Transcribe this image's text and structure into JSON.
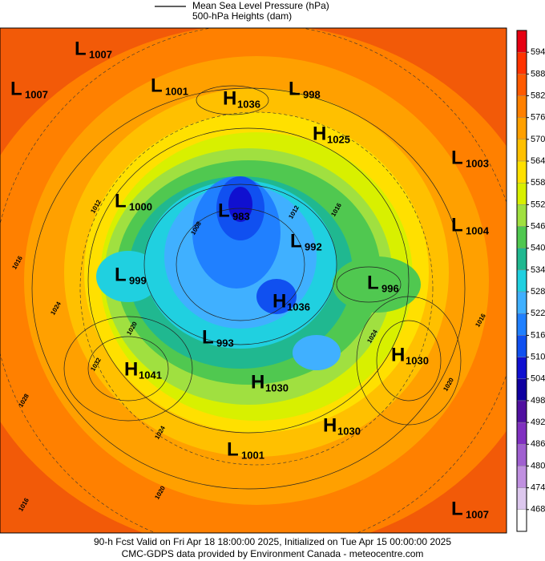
{
  "header": {
    "legend_line": "Mean Sea Level Pressure (hPa)",
    "legend_fill": "500-hPa Heights (dam)"
  },
  "colorbar": {
    "ticks": [
      594,
      588,
      582,
      576,
      570,
      564,
      558,
      552,
      546,
      540,
      534,
      528,
      522,
      516,
      510,
      504,
      498,
      492,
      486,
      480,
      474,
      468
    ],
    "colors": [
      "#e60012",
      "#ff3300",
      "#ff5a00",
      "#ff8000",
      "#ffa000",
      "#ffc000",
      "#ffe000",
      "#d8f000",
      "#a0e040",
      "#50c850",
      "#20b890",
      "#20d0e0",
      "#40b0ff",
      "#2080ff",
      "#1050f0",
      "#1010d0",
      "#1000a0",
      "#5010a0",
      "#8030c0",
      "#a060d0",
      "#c090e0",
      "#ddc8ee",
      "#ffffff"
    ]
  },
  "centers": [
    {
      "letter": "L",
      "value": "1007"
    },
    {
      "letter": "L",
      "value": "1007"
    },
    {
      "letter": "L",
      "value": "1001"
    },
    {
      "letter": "H",
      "value": "1036"
    },
    {
      "letter": "L",
      "value": "998"
    },
    {
      "letter": "H",
      "value": "1025"
    },
    {
      "letter": "L",
      "value": "1003"
    },
    {
      "letter": "L",
      "value": "1000"
    },
    {
      "letter": "L",
      "value": "983"
    },
    {
      "letter": "L",
      "value": "992"
    },
    {
      "letter": "L",
      "value": "1004"
    },
    {
      "letter": "L",
      "value": "999"
    },
    {
      "letter": "L",
      "value": "996"
    },
    {
      "letter": "H",
      "value": "1036"
    },
    {
      "letter": "L",
      "value": "993"
    },
    {
      "letter": "H",
      "value": "1030"
    },
    {
      "letter": "H",
      "value": "1041"
    },
    {
      "letter": "H",
      "value": "1030"
    },
    {
      "letter": "H",
      "value": "1030"
    },
    {
      "letter": "L",
      "value": "1001"
    },
    {
      "letter": "L",
      "value": "1007"
    }
  ],
  "contour_labels": [
    "1016",
    "1012",
    "1020",
    "1024",
    "1028",
    "1032",
    "1024",
    "1016",
    "1012",
    "1016",
    "1024",
    "1020",
    "1016",
    "1020",
    "1008"
  ],
  "footer": {
    "line1": "90-h Fcst Valid on Fri Apr 18 18:00:00 2025, Initialized on Tue Apr 15 00:00:00 2025",
    "line2": "CMC-GDPS data provided by Environment Canada - meteocentre.com"
  }
}
